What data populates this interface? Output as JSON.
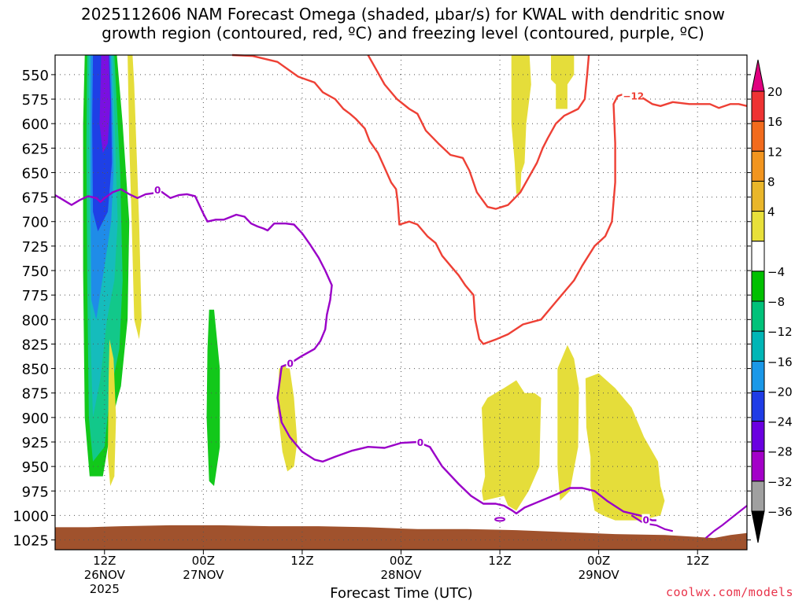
{
  "chart_data": {
    "type": "contour",
    "title_line1": "2025112606 NAM Forecast Omega (shaded, µbar/s) for KWAL with dendritic snow",
    "title_line2": "growth region (contoured, red, ºC) and freezing level (contoured, purple, ºC)",
    "xlabel": "Forecast Time (UTC)",
    "ylabel": "",
    "y_ticks": [
      "550",
      "575",
      "600",
      "625",
      "650",
      "675",
      "700",
      "725",
      "750",
      "775",
      "800",
      "825",
      "850",
      "875",
      "900",
      "925",
      "950",
      "975",
      "1000",
      "1025"
    ],
    "x_ticks": [
      {
        "hour": 12,
        "label": "12Z",
        "date": "26NOV",
        "year": "2025"
      },
      {
        "hour": 24,
        "label": "00Z",
        "date": "27NOV"
      },
      {
        "hour": 36,
        "label": "12Z",
        "date": ""
      },
      {
        "hour": 48,
        "label": "00Z",
        "date": "28NOV"
      },
      {
        "hour": 60,
        "label": "12Z",
        "date": ""
      },
      {
        "hour": 72,
        "label": "00Z",
        "date": "29NOV"
      },
      {
        "hour": 84,
        "label": "12Z",
        "date": ""
      }
    ],
    "x_range_hours": [
      6,
      90
    ],
    "y_range_mb": [
      530,
      1035
    ],
    "grid": true,
    "colorbar": {
      "labels": [
        "20",
        "16",
        "12",
        "8",
        "4",
        "−4",
        "−8",
        "−12",
        "−16",
        "−20",
        "−24",
        "−28",
        "−32",
        "−36"
      ],
      "colors": [
        "#e0007f",
        "#ee3333",
        "#f26b1d",
        "#f2951f",
        "#e9b62a",
        "#e8e03a",
        "#ffffff",
        "#00c000",
        "#00c27a",
        "#00b6b6",
        "#1a98e8",
        "#1f3ce6",
        "#6a00e0",
        "#a300c8",
        "#a0a0a0",
        "#000000"
      ]
    },
    "contour_labels": {
      "red": "−12",
      "purple": "0"
    },
    "colors": {
      "snow_growth": "#ee4035",
      "freezing_level": "#9a00c8",
      "ground": "#a0522d",
      "yellow_shade": "#e5dd3a",
      "green_shade": "#12c81a",
      "teal_shade": "#12c88a",
      "cyan_shade": "#15bcbc",
      "blue_shade": "#1f8ce8",
      "dblue_shade": "#1e40e6",
      "purple_shade": "#7a10e0"
    }
  },
  "credit": "coolwx.com/models"
}
